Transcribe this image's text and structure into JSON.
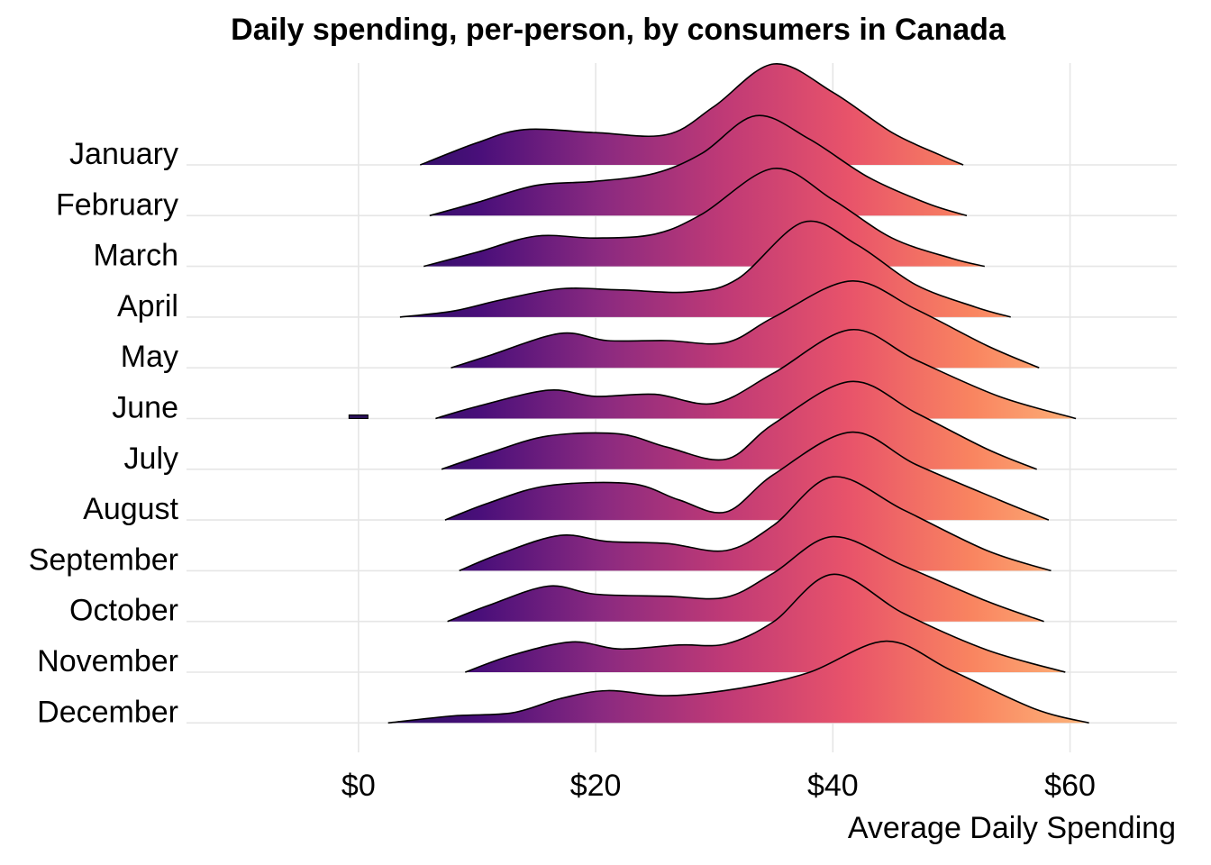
{
  "chart_data": {
    "type": "ridgeline",
    "title": "Daily spending, per-person, by consumers in Canada",
    "xlabel": "Average Daily Spending",
    "ylabel": "",
    "xlim": [
      -14.5,
      69
    ],
    "x_ticks": [
      0,
      20,
      40,
      60
    ],
    "x_tick_labels": [
      "$0",
      "$20",
      "$40",
      "$60"
    ],
    "grid": true,
    "legend": "none",
    "fill_gradient": [
      "#1d0f5a",
      "#4a0f7a",
      "#8b2a80",
      "#c03a76",
      "#e8536a",
      "#f98460",
      "#fdb77b"
    ],
    "fill_gradient_range": [
      0,
      62
    ],
    "series": [
      {
        "name": "January",
        "density": [
          [
            5.2,
            0.0
          ],
          [
            10,
            0.22
          ],
          [
            14,
            0.35
          ],
          [
            20,
            0.32
          ],
          [
            26,
            0.3
          ],
          [
            30,
            0.58
          ],
          [
            35,
            1.0
          ],
          [
            40,
            0.72
          ],
          [
            45,
            0.32
          ],
          [
            49,
            0.1
          ],
          [
            51,
            0.0
          ]
        ]
      },
      {
        "name": "February",
        "density": [
          [
            6,
            0.0
          ],
          [
            10,
            0.13
          ],
          [
            15,
            0.3
          ],
          [
            20,
            0.34
          ],
          [
            25,
            0.42
          ],
          [
            29,
            0.62
          ],
          [
            33.5,
            0.99
          ],
          [
            38,
            0.76
          ],
          [
            43,
            0.38
          ],
          [
            48,
            0.12
          ],
          [
            51.3,
            0.0
          ]
        ]
      },
      {
        "name": "March",
        "density": [
          [
            5.5,
            0.0
          ],
          [
            10,
            0.14
          ],
          [
            15,
            0.3
          ],
          [
            20,
            0.28
          ],
          [
            25,
            0.32
          ],
          [
            29,
            0.52
          ],
          [
            35,
            0.97
          ],
          [
            40,
            0.66
          ],
          [
            45,
            0.28
          ],
          [
            50,
            0.08
          ],
          [
            52.8,
            0.0
          ]
        ]
      },
      {
        "name": "April",
        "density": [
          [
            3.5,
            0.0
          ],
          [
            8,
            0.06
          ],
          [
            12,
            0.17
          ],
          [
            17,
            0.28
          ],
          [
            22,
            0.27
          ],
          [
            28,
            0.25
          ],
          [
            32,
            0.38
          ],
          [
            37.5,
            0.94
          ],
          [
            42,
            0.72
          ],
          [
            47,
            0.32
          ],
          [
            52,
            0.1
          ],
          [
            55,
            0.0
          ]
        ]
      },
      {
        "name": "May",
        "density": [
          [
            7.8,
            0.0
          ],
          [
            11,
            0.12
          ],
          [
            17,
            0.34
          ],
          [
            21,
            0.27
          ],
          [
            26,
            0.27
          ],
          [
            31,
            0.25
          ],
          [
            35,
            0.5
          ],
          [
            41.5,
            0.86
          ],
          [
            47,
            0.58
          ],
          [
            53,
            0.22
          ],
          [
            57.4,
            0.0
          ]
        ]
      },
      {
        "name": "June",
        "density": [
          [
            6.5,
            0.0
          ],
          [
            10,
            0.12
          ],
          [
            16,
            0.28
          ],
          [
            20,
            0.22
          ],
          [
            25,
            0.24
          ],
          [
            30,
            0.15
          ],
          [
            35,
            0.45
          ],
          [
            41.5,
            0.88
          ],
          [
            47,
            0.58
          ],
          [
            54,
            0.22
          ],
          [
            60.5,
            0.0
          ]
        ]
      },
      {
        "name": "July",
        "density": [
          [
            7,
            0.0
          ],
          [
            11,
            0.16
          ],
          [
            16,
            0.33
          ],
          [
            22,
            0.35
          ],
          [
            26,
            0.22
          ],
          [
            31,
            0.1
          ],
          [
            35,
            0.45
          ],
          [
            41.5,
            0.87
          ],
          [
            47,
            0.56
          ],
          [
            53,
            0.2
          ],
          [
            57.2,
            0.0
          ]
        ]
      },
      {
        "name": "August",
        "density": [
          [
            7.3,
            0.0
          ],
          [
            11,
            0.17
          ],
          [
            16,
            0.34
          ],
          [
            23,
            0.36
          ],
          [
            27,
            0.2
          ],
          [
            31,
            0.08
          ],
          [
            35,
            0.45
          ],
          [
            41.5,
            0.87
          ],
          [
            47,
            0.55
          ],
          [
            54,
            0.2
          ],
          [
            58.2,
            0.0
          ]
        ]
      },
      {
        "name": "September",
        "density": [
          [
            8.5,
            0.0
          ],
          [
            12,
            0.17
          ],
          [
            17,
            0.35
          ],
          [
            21,
            0.29
          ],
          [
            26,
            0.27
          ],
          [
            31,
            0.2
          ],
          [
            35,
            0.45
          ],
          [
            40,
            0.93
          ],
          [
            46,
            0.6
          ],
          [
            53,
            0.2
          ],
          [
            58.4,
            0.0
          ]
        ]
      },
      {
        "name": "October",
        "density": [
          [
            7.5,
            0.0
          ],
          [
            11,
            0.16
          ],
          [
            16,
            0.35
          ],
          [
            20,
            0.27
          ],
          [
            26,
            0.25
          ],
          [
            31,
            0.24
          ],
          [
            35,
            0.48
          ],
          [
            40,
            0.84
          ],
          [
            46,
            0.55
          ],
          [
            53,
            0.2
          ],
          [
            57.8,
            0.0
          ]
        ]
      },
      {
        "name": "November",
        "density": [
          [
            9,
            0.0
          ],
          [
            13,
            0.17
          ],
          [
            18,
            0.3
          ],
          [
            22,
            0.23
          ],
          [
            27,
            0.27
          ],
          [
            31,
            0.28
          ],
          [
            35,
            0.5
          ],
          [
            40,
            0.97
          ],
          [
            46,
            0.58
          ],
          [
            53,
            0.22
          ],
          [
            59.6,
            0.0
          ]
        ]
      },
      {
        "name": "December",
        "density": [
          [
            2.5,
            0.0
          ],
          [
            8,
            0.07
          ],
          [
            13,
            0.1
          ],
          [
            17,
            0.24
          ],
          [
            21,
            0.32
          ],
          [
            26,
            0.27
          ],
          [
            32,
            0.34
          ],
          [
            38,
            0.5
          ],
          [
            44.5,
            0.81
          ],
          [
            50,
            0.52
          ],
          [
            57,
            0.14
          ],
          [
            61.6,
            0.0
          ]
        ]
      }
    ],
    "outlier_marks": [
      {
        "series": "June",
        "x_from": -0.8,
        "x_to": 0.8
      }
    ]
  }
}
